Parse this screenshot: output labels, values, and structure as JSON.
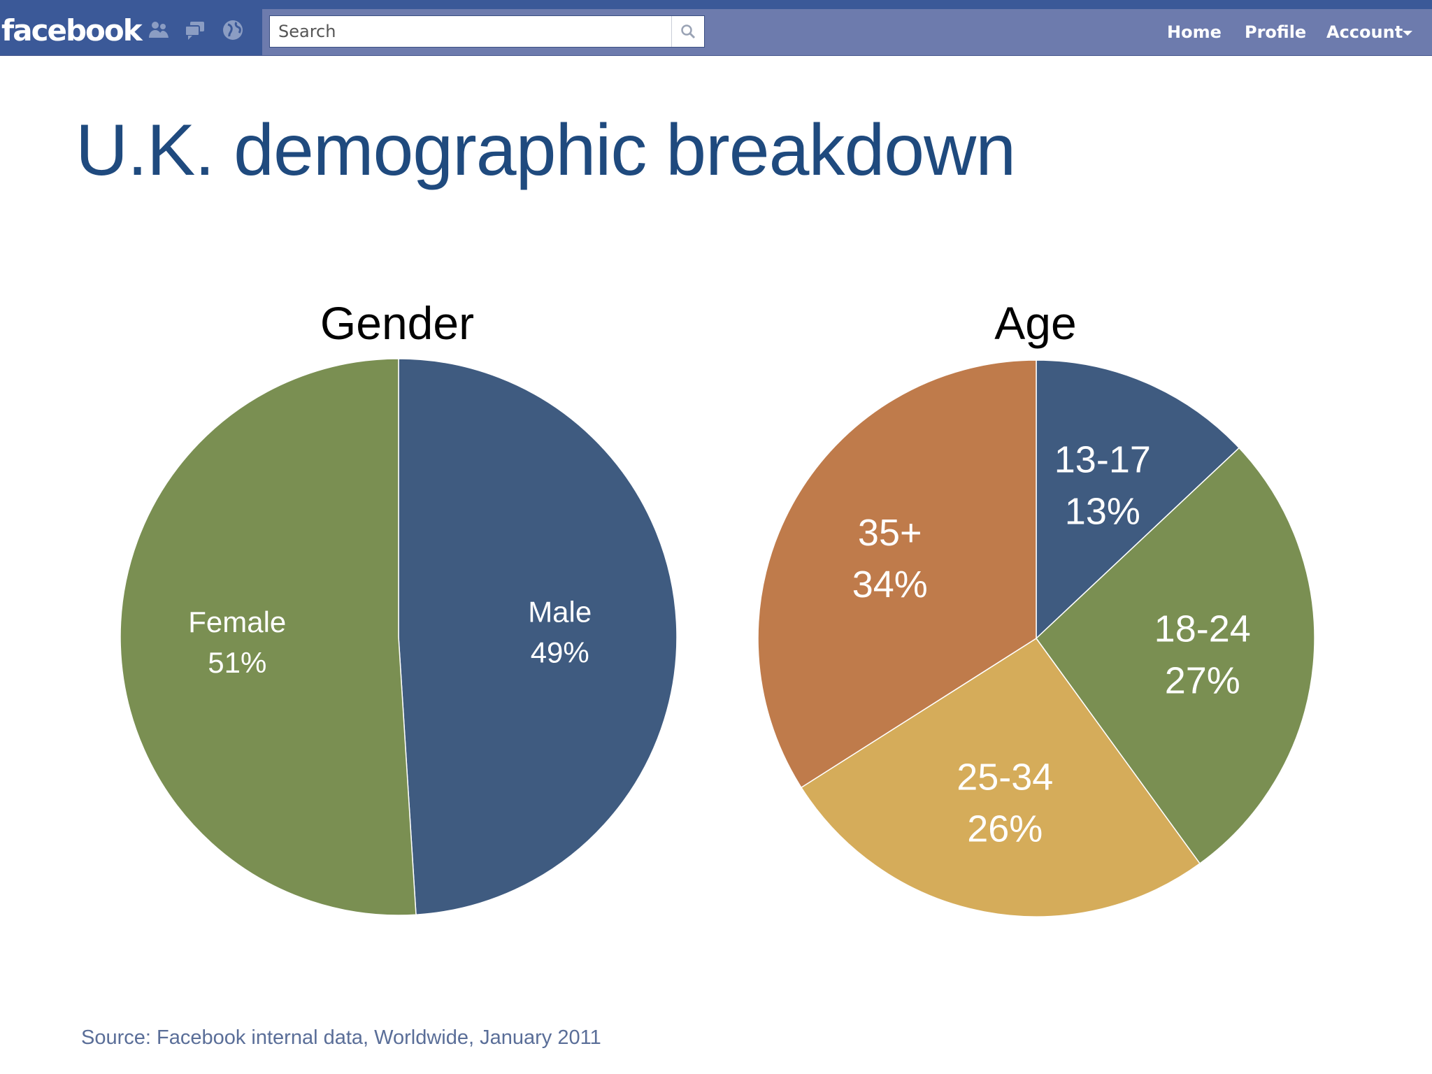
{
  "topbar": {
    "logo": "facebook",
    "jewels": [
      "friend-requests-icon",
      "messages-icon",
      "notifications-globe-icon"
    ],
    "search_placeholder": "Search",
    "nav": {
      "home": "Home",
      "profile": "Profile",
      "account": "Account"
    },
    "colors": {
      "bar": "#6d7bad",
      "brand": "#3b5998"
    }
  },
  "slide": {
    "title": "U.K. demographic breakdown",
    "source": "Source: Facebook internal data, Worldwide,  January 2011"
  },
  "chart_data": [
    {
      "type": "pie",
      "title": "Gender",
      "slices": [
        {
          "label": "Male",
          "value": 49,
          "display": "49%",
          "color": "#3f5b80"
        },
        {
          "label": "Female",
          "value": 51,
          "display": "51%",
          "color": "#7a8f52"
        }
      ]
    },
    {
      "type": "pie",
      "title": "Age",
      "slices": [
        {
          "label": "13-17",
          "value": 13,
          "display": "13%",
          "color": "#3f5b80"
        },
        {
          "label": "18-24",
          "value": 27,
          "display": "27%",
          "color": "#7a8f52"
        },
        {
          "label": "25-34",
          "value": 26,
          "display": "26%",
          "color": "#d5ac5a"
        },
        {
          "label": "35+",
          "value": 34,
          "display": "34%",
          "color": "#bf7b4b"
        }
      ]
    }
  ]
}
